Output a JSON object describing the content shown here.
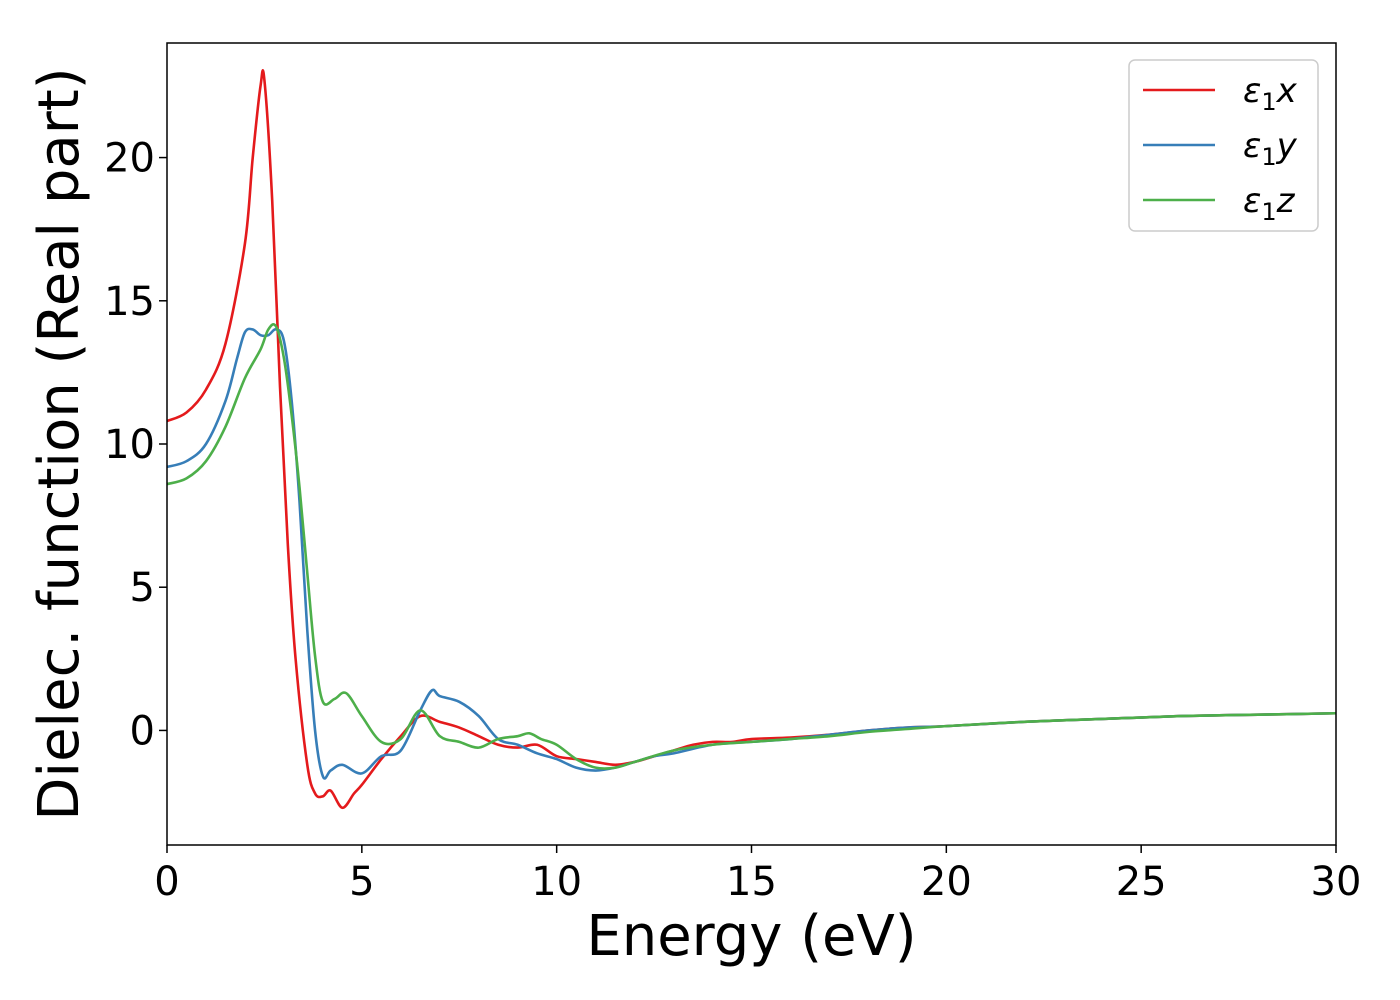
{
  "chart_data": {
    "type": "line",
    "title": "",
    "xlabel": "Energy (eV)",
    "ylabel": "Dielec. function (Real part)",
    "xlim": [
      0,
      30
    ],
    "ylim": [
      -4,
      24
    ],
    "xticks": [
      0,
      5,
      10,
      15,
      20,
      25,
      30
    ],
    "yticks": [
      0,
      5,
      10,
      15,
      20
    ],
    "grid": false,
    "legend_position": "top-right",
    "series": [
      {
        "name": "ε1x",
        "legend": {
          "base": "ε",
          "sub": "1",
          "suffix": "x"
        },
        "color": "#e41a1c",
        "x": [
          0,
          0.5,
          1.0,
          1.5,
          2.0,
          2.2,
          2.4,
          2.5,
          2.7,
          2.9,
          3.1,
          3.3,
          3.6,
          3.8,
          4.0,
          4.2,
          4.5,
          4.8,
          5.0,
          5.5,
          6.0,
          6.5,
          7.0,
          7.5,
          8.0,
          8.5,
          9.0,
          9.5,
          10.0,
          10.5,
          11.0,
          11.5,
          12.0,
          12.5,
          13.0,
          13.5,
          14.0,
          14.5,
          15.0,
          16.0,
          17.0,
          18.0,
          19.0,
          20.0,
          22.0,
          24.0,
          26.0,
          28.0,
          30.0
        ],
        "y": [
          10.8,
          11.1,
          11.9,
          13.5,
          17.0,
          20.0,
          22.5,
          22.7,
          18.5,
          12.0,
          6.5,
          2.5,
          -1.2,
          -2.2,
          -2.3,
          -2.1,
          -2.7,
          -2.2,
          -1.9,
          -1.0,
          -0.2,
          0.5,
          0.3,
          0.1,
          -0.2,
          -0.5,
          -0.6,
          -0.5,
          -0.9,
          -1.0,
          -1.1,
          -1.2,
          -1.1,
          -0.9,
          -0.7,
          -0.5,
          -0.4,
          -0.4,
          -0.3,
          -0.25,
          -0.15,
          0.0,
          0.1,
          0.15,
          0.3,
          0.4,
          0.5,
          0.55,
          0.6
        ]
      },
      {
        "name": "ε1y",
        "legend": {
          "base": "ε",
          "sub": "1",
          "suffix": "y"
        },
        "color": "#377eb8",
        "x": [
          0,
          0.5,
          1.0,
          1.5,
          1.8,
          2.0,
          2.2,
          2.4,
          2.6,
          2.8,
          3.0,
          3.2,
          3.4,
          3.6,
          3.8,
          4.0,
          4.2,
          4.5,
          5.0,
          5.5,
          6.0,
          6.5,
          6.8,
          7.0,
          7.5,
          8.0,
          8.5,
          9.0,
          9.5,
          10.0,
          10.5,
          11.0,
          11.5,
          12.0,
          12.5,
          13.0,
          14.0,
          15.0,
          16.0,
          17.0,
          18.0,
          19.0,
          20.0,
          22.0,
          24.0,
          26.0,
          28.0,
          30.0
        ],
        "y": [
          9.2,
          9.4,
          10.0,
          11.5,
          13.0,
          13.9,
          14.0,
          13.8,
          13.8,
          14.0,
          13.6,
          11.5,
          8.0,
          3.5,
          0.0,
          -1.6,
          -1.4,
          -1.2,
          -1.5,
          -0.9,
          -0.7,
          0.7,
          1.4,
          1.2,
          1.0,
          0.5,
          -0.3,
          -0.5,
          -0.8,
          -1.0,
          -1.3,
          -1.4,
          -1.3,
          -1.1,
          -0.9,
          -0.8,
          -0.5,
          -0.4,
          -0.3,
          -0.15,
          0.0,
          0.1,
          0.15,
          0.3,
          0.4,
          0.5,
          0.55,
          0.6
        ]
      },
      {
        "name": "ε1z",
        "legend": {
          "base": "ε",
          "sub": "1",
          "suffix": "z"
        },
        "color": "#4daf4a",
        "x": [
          0,
          0.5,
          1.0,
          1.5,
          2.0,
          2.4,
          2.6,
          2.8,
          3.0,
          3.2,
          3.4,
          3.6,
          3.8,
          4.0,
          4.3,
          4.6,
          5.0,
          5.5,
          6.0,
          6.5,
          7.0,
          7.5,
          8.0,
          8.5,
          9.0,
          9.3,
          9.6,
          10.0,
          10.5,
          11.0,
          11.5,
          12.0,
          13.0,
          14.0,
          15.0,
          16.0,
          17.0,
          18.0,
          19.0,
          20.0,
          22.0,
          24.0,
          26.0,
          28.0,
          30.0
        ],
        "y": [
          8.6,
          8.8,
          9.4,
          10.6,
          12.3,
          13.3,
          14.0,
          14.1,
          13.0,
          11.0,
          8.5,
          5.5,
          2.6,
          1.0,
          1.1,
          1.3,
          0.5,
          -0.4,
          -0.3,
          0.7,
          -0.2,
          -0.4,
          -0.6,
          -0.3,
          -0.2,
          -0.1,
          -0.3,
          -0.5,
          -1.0,
          -1.3,
          -1.3,
          -1.1,
          -0.7,
          -0.5,
          -0.4,
          -0.3,
          -0.2,
          -0.05,
          0.05,
          0.15,
          0.3,
          0.4,
          0.5,
          0.55,
          0.6
        ]
      }
    ]
  }
}
